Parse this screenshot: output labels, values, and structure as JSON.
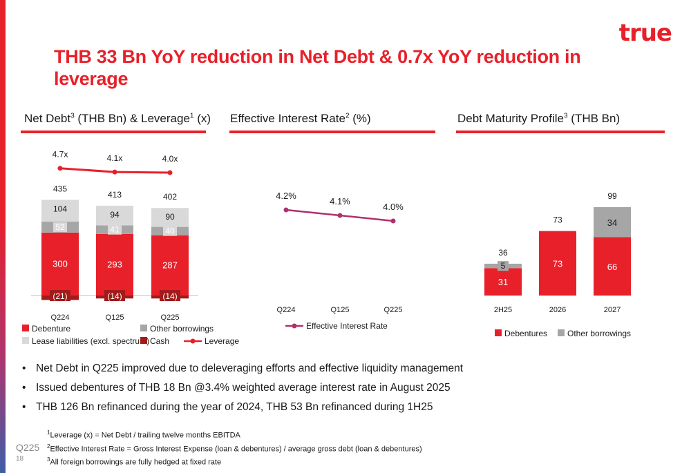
{
  "logo": "true",
  "title": "THB 33 Bn YoY reduction in Net Debt & 0.7x YoY reduction in leverage",
  "panels": {
    "p1": {
      "title_a": "Net Debt",
      "sup_a": "3",
      "title_b": " (THB Bn) & Leverage",
      "sup_b": "1",
      "title_c": " (x)"
    },
    "p2": {
      "title_a": "Effective Interest Rate",
      "sup_a": "2",
      "title_b": " (%)"
    },
    "p3": {
      "title_a": "Debt Maturity Profile",
      "sup_a": "3",
      "title_b": " (THB Bn)"
    }
  },
  "colors": {
    "red": "#e8202a",
    "gray": "#a6a6a6",
    "light_gray": "#d9d9d9",
    "dark_red": "#a31a1a",
    "line_purple": "#b0306e"
  },
  "chart_data": [
    {
      "type": "bar",
      "stacked": true,
      "categories": [
        "Q224",
        "Q125",
        "Q225"
      ],
      "series": [
        {
          "name": "Debenture",
          "values": [
            300,
            293,
            287
          ],
          "labels": [
            "300",
            "293",
            "287"
          ]
        },
        {
          "name": "Other borrowings",
          "values": [
            52,
            41,
            40
          ],
          "labels": [
            "52",
            "41",
            "40"
          ]
        },
        {
          "name": "Lease liabilities (excl. spectrum)",
          "values": [
            104,
            94,
            90
          ],
          "labels": [
            "104",
            "94",
            "90"
          ]
        },
        {
          "name": "Cash",
          "values": [
            -21,
            -14,
            -14
          ],
          "labels": [
            "(21)",
            "(14)",
            "(14)"
          ]
        }
      ],
      "totals": [
        "435",
        "413",
        "402"
      ],
      "line": {
        "name": "Leverage",
        "values": [
          4.7,
          4.1,
          4.0
        ],
        "labels": [
          "4.7x",
          "4.1x",
          "4.0x"
        ]
      },
      "legend": [
        {
          "name": "Debenture",
          "kind": "box",
          "color": "#e8202a"
        },
        {
          "name": "Other borrowings",
          "kind": "box",
          "color": "#a6a6a6"
        },
        {
          "name": "Lease liabilities (excl. spectrum)",
          "kind": "box",
          "color": "#d9d9d9"
        },
        {
          "name": "Cash",
          "kind": "box",
          "color": "#a31a1a"
        },
        {
          "name": "Leverage",
          "kind": "line",
          "color": "#e8202a"
        }
      ]
    },
    {
      "type": "line",
      "categories": [
        "Q224",
        "Q125",
        "Q225"
      ],
      "series": [
        {
          "name": "Effective Interest Rate",
          "values": [
            4.2,
            4.1,
            4.0
          ],
          "labels": [
            "4.2%",
            "4.1%",
            "4.0%"
          ]
        }
      ],
      "legend": [
        {
          "name": "Effective Interest Rate",
          "kind": "line",
          "color": "#b0306e"
        }
      ]
    },
    {
      "type": "bar",
      "stacked": true,
      "categories": [
        "2H25",
        "2026",
        "2027"
      ],
      "series": [
        {
          "name": "Debentures",
          "values": [
            31,
            73,
            66
          ],
          "labels": [
            "31",
            "73",
            "66"
          ]
        },
        {
          "name": "Other borrowings",
          "values": [
            5,
            0,
            34
          ],
          "labels": [
            "5",
            "",
            "34"
          ]
        }
      ],
      "totals": [
        "36",
        "73",
        "99"
      ],
      "legend": [
        {
          "name": "Debentures",
          "kind": "box",
          "color": "#e8202a"
        },
        {
          "name": "Other borrowings",
          "kind": "box",
          "color": "#a6a6a6"
        }
      ]
    }
  ],
  "bullets": [
    "Net Debt in Q225 improved due to deleveraging efforts and effective liquidity management",
    "Issued debentures of THB 18 Bn @3.4% weighted average interest rate in August 2025",
    "THB 126 Bn refinanced during the year of 2024, THB 53 Bn refinanced during 1H25"
  ],
  "footnotes": [
    {
      "sup": "1",
      "text": "Leverage (x) = Net Debt / trailing twelve months EBITDA"
    },
    {
      "sup": "2",
      "text": "Effective Interest Rate = Gross Interest Expense (loan & debentures) / average gross debt (loan & debentures)"
    },
    {
      "sup": "3",
      "text": "All foreign borrowings are fully hedged at fixed rate"
    }
  ],
  "page": {
    "tag": "Q225",
    "number": "18"
  }
}
